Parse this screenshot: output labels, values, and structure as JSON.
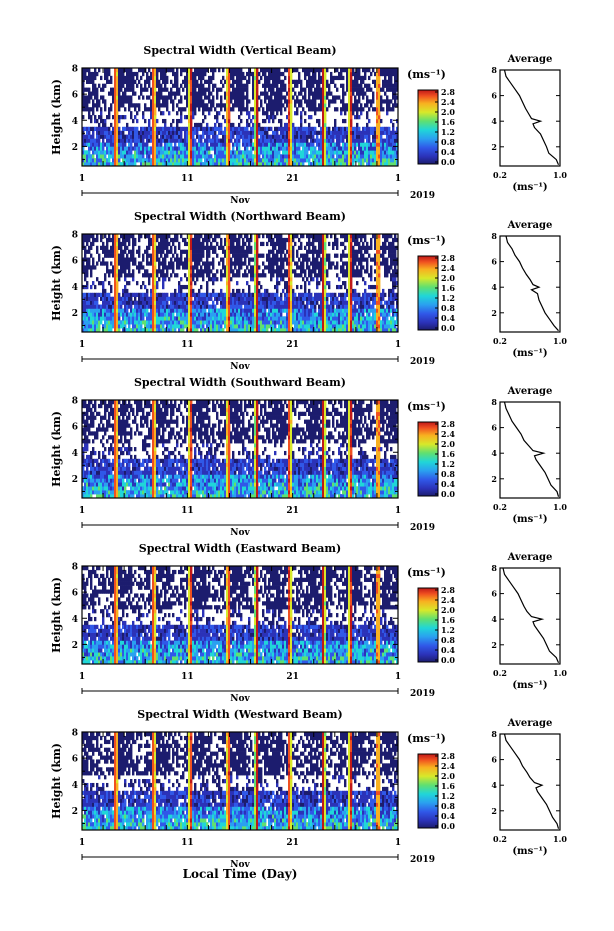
{
  "global": {
    "xlabel": "Local Time (Day)"
  },
  "chart_data": [
    {
      "type": "heatmap",
      "title": "Spectral Width (Vertical Beam)",
      "ylabel": "Height (km)",
      "y_ticks": [
        "8",
        "6",
        "4",
        "2"
      ],
      "ylim": [
        0.5,
        8
      ],
      "x_ticks": [
        "1",
        "11",
        "21",
        "1"
      ],
      "xlim": [
        1,
        31
      ],
      "month": "Nov",
      "year": "2019",
      "colorbar": {
        "unit": "(ms⁻¹)",
        "ticks": [
          "2.8",
          "2.4",
          "2.0",
          "1.6",
          "1.2",
          "0.8",
          "0.4",
          "0.0"
        ],
        "range": [
          0,
          3.0
        ]
      },
      "profile": {
        "title": "Average",
        "xlabel": "(ms⁻¹)",
        "x_ticks": [
          "0.2",
          "1.0"
        ],
        "y_ticks": [
          "8",
          "6",
          "4",
          "2"
        ],
        "xlim": [
          0.2,
          1.0
        ],
        "ylim": [
          0.5,
          8
        ],
        "height_km": [
          0.6,
          1.0,
          1.5,
          2.0,
          2.5,
          3.0,
          3.5,
          3.8,
          4.0,
          4.2,
          4.6,
          5.0,
          5.5,
          6.0,
          6.5,
          7.0,
          7.5,
          8.0
        ],
        "width": [
          0.98,
          0.95,
          0.85,
          0.82,
          0.78,
          0.74,
          0.66,
          0.64,
          0.74,
          0.62,
          0.58,
          0.54,
          0.5,
          0.46,
          0.4,
          0.34,
          0.28,
          0.26
        ]
      }
    },
    {
      "type": "heatmap",
      "title": "Spectral Width (Northward Beam)",
      "ylabel": "Height (km)",
      "y_ticks": [
        "8",
        "6",
        "4",
        "2"
      ],
      "ylim": [
        0.5,
        8
      ],
      "x_ticks": [
        "1",
        "11",
        "21",
        "1"
      ],
      "xlim": [
        1,
        31
      ],
      "month": "Nov",
      "year": "2019",
      "colorbar": {
        "unit": "(ms⁻¹)",
        "ticks": [
          "2.8",
          "2.4",
          "2.0",
          "1.6",
          "1.2",
          "0.8",
          "0.4",
          "0.0"
        ],
        "range": [
          0,
          3.0
        ]
      },
      "profile": {
        "title": "Average",
        "xlabel": "(ms⁻¹)",
        "x_ticks": [
          "0.2",
          "1.0"
        ],
        "y_ticks": [
          "8",
          "6",
          "4",
          "2"
        ],
        "xlim": [
          0.2,
          1.0
        ],
        "ylim": [
          0.5,
          8
        ],
        "height_km": [
          0.6,
          1.0,
          1.5,
          2.0,
          2.5,
          3.0,
          3.5,
          3.8,
          4.0,
          4.2,
          4.6,
          5.0,
          5.5,
          6.0,
          6.5,
          7.0,
          7.5,
          8.0
        ],
        "width": [
          0.98,
          0.92,
          0.86,
          0.8,
          0.76,
          0.72,
          0.7,
          0.62,
          0.72,
          0.64,
          0.6,
          0.55,
          0.5,
          0.46,
          0.4,
          0.36,
          0.3,
          0.28
        ]
      }
    },
    {
      "type": "heatmap",
      "title": "Spectral Width (Southward Beam)",
      "ylabel": "Height (km)",
      "y_ticks": [
        "8",
        "6",
        "4",
        "2"
      ],
      "ylim": [
        0.5,
        8
      ],
      "x_ticks": [
        "1",
        "11",
        "21",
        "1"
      ],
      "xlim": [
        1,
        31
      ],
      "month": "Nov",
      "year": "2019",
      "colorbar": {
        "unit": "(ms⁻¹)",
        "ticks": [
          "2.8",
          "2.4",
          "2.0",
          "1.6",
          "1.2",
          "0.8",
          "0.4",
          "0.0"
        ],
        "range": [
          0,
          3.0
        ]
      },
      "profile": {
        "title": "Average",
        "xlabel": "(ms⁻¹)",
        "x_ticks": [
          "0.2",
          "1.0"
        ],
        "y_ticks": [
          "8",
          "6",
          "4",
          "2"
        ],
        "xlim": [
          0.2,
          1.0
        ],
        "ylim": [
          0.5,
          8
        ],
        "height_km": [
          0.6,
          1.0,
          1.5,
          2.0,
          2.5,
          3.0,
          3.5,
          3.8,
          4.0,
          4.2,
          4.6,
          5.0,
          5.5,
          6.0,
          6.5,
          7.0,
          7.5,
          8.0
        ],
        "width": [
          0.98,
          0.96,
          0.88,
          0.84,
          0.8,
          0.74,
          0.68,
          0.66,
          0.78,
          0.64,
          0.58,
          0.52,
          0.48,
          0.42,
          0.36,
          0.32,
          0.28,
          0.26
        ]
      }
    },
    {
      "type": "heatmap",
      "title": "Spectral Width (Eastward Beam)",
      "ylabel": "Height (km)",
      "y_ticks": [
        "8",
        "6",
        "4",
        "2"
      ],
      "ylim": [
        0.5,
        8
      ],
      "x_ticks": [
        "1",
        "11",
        "21",
        "1"
      ],
      "xlim": [
        1,
        31
      ],
      "month": "Nov",
      "year": "2019",
      "colorbar": {
        "unit": "(ms⁻¹)",
        "ticks": [
          "2.8",
          "2.4",
          "2.0",
          "1.6",
          "1.2",
          "0.8",
          "0.4",
          "0.0"
        ],
        "range": [
          0,
          3.0
        ]
      },
      "profile": {
        "title": "Average",
        "xlabel": "(ms⁻¹)",
        "x_ticks": [
          "0.2",
          "1.0"
        ],
        "y_ticks": [
          "8",
          "6",
          "4",
          "2"
        ],
        "xlim": [
          0.2,
          1.0
        ],
        "ylim": [
          0.5,
          8
        ],
        "height_km": [
          0.6,
          1.0,
          1.5,
          2.0,
          2.5,
          3.0,
          3.5,
          3.8,
          4.0,
          4.2,
          4.6,
          5.0,
          5.5,
          6.0,
          6.5,
          7.0,
          7.5,
          8.0
        ],
        "width": [
          0.98,
          0.95,
          0.86,
          0.82,
          0.78,
          0.72,
          0.66,
          0.64,
          0.76,
          0.62,
          0.56,
          0.52,
          0.48,
          0.44,
          0.38,
          0.32,
          0.26,
          0.24
        ]
      }
    },
    {
      "type": "heatmap",
      "title": "Spectral Width (Westward Beam)",
      "ylabel": "Height (km)",
      "y_ticks": [
        "8",
        "6",
        "4",
        "2"
      ],
      "ylim": [
        0.5,
        8
      ],
      "x_ticks": [
        "1",
        "11",
        "21",
        "1"
      ],
      "xlim": [
        1,
        31
      ],
      "month": "Nov",
      "year": "2019",
      "colorbar": {
        "unit": "(ms⁻¹)",
        "ticks": [
          "2.8",
          "2.4",
          "2.0",
          "1.6",
          "1.2",
          "0.8",
          "0.4",
          "0.0"
        ],
        "range": [
          0,
          3.0
        ]
      },
      "profile": {
        "title": "Average",
        "xlabel": "(ms⁻¹)",
        "x_ticks": [
          "0.2",
          "1.0"
        ],
        "y_ticks": [
          "8",
          "6",
          "4",
          "2"
        ],
        "xlim": [
          0.2,
          1.0
        ],
        "ylim": [
          0.5,
          8
        ],
        "height_km": [
          0.6,
          1.0,
          1.5,
          2.0,
          2.5,
          3.0,
          3.5,
          3.8,
          4.0,
          4.2,
          4.6,
          5.0,
          5.5,
          6.0,
          6.5,
          7.0,
          7.5,
          8.0
        ],
        "width": [
          0.98,
          0.96,
          0.9,
          0.86,
          0.82,
          0.76,
          0.7,
          0.68,
          0.76,
          0.66,
          0.6,
          0.56,
          0.5,
          0.46,
          0.4,
          0.34,
          0.28,
          0.26
        ]
      }
    }
  ]
}
